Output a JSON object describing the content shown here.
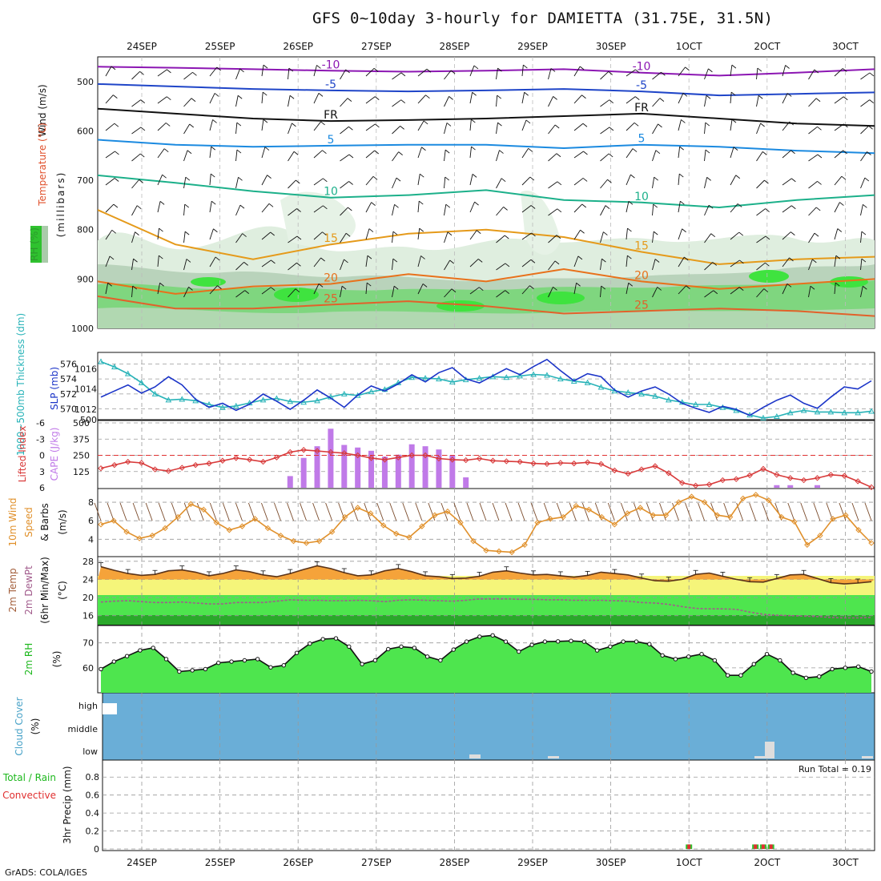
{
  "title": "GFS 0~10day 3-hourly for DAMIETTA (31.75E, 31.5N)",
  "credit": "GrADS: COLA/IGES",
  "chart_data": {
    "type": "meteogram",
    "dates": [
      "24SEP",
      "25SEP",
      "26SEP",
      "27SEP",
      "28SEP",
      "29SEP",
      "30SEP",
      "1OCT",
      "2OCT",
      "3OCT"
    ],
    "panels": {
      "upper": {
        "label_wind": "Wind (m/s)",
        "label_temp": "Temperature (°C)",
        "label_rh": "RH (%)",
        "label_units": "(millibars)",
        "pressure_levels": [
          500,
          600,
          700,
          800,
          900,
          1000
        ],
        "ylim": [
          450,
          1000
        ],
        "temperature_contours": [
          {
            "label": "-10",
            "color": "#8c17b3",
            "level_mb": [
              470,
              472,
              475,
              478,
              480,
              478,
              475,
              482,
              488,
              482,
              475
            ]
          },
          {
            "label": "-5",
            "color": "#1f45c8",
            "level_mb": [
              505,
              510,
              515,
              518,
              520,
              518,
              515,
              520,
              528,
              525,
              522
            ]
          },
          {
            "label": "FR",
            "color": "#111111",
            "level_mb": [
              555,
              565,
              575,
              580,
              578,
              575,
              570,
              565,
              575,
              585,
              590
            ]
          },
          {
            "label": "5",
            "color": "#1b8ae0",
            "level_mb": [
              618,
              628,
              632,
              630,
              628,
              628,
              635,
              628,
              632,
              640,
              645
            ]
          },
          {
            "label": "10",
            "color": "#1cb08a",
            "level_mb": [
              690,
              705,
              722,
              735,
              730,
              720,
              740,
              745,
              755,
              740,
              730
            ]
          },
          {
            "label": "15",
            "color": "#e59a1a",
            "level_mb": [
              760,
              830,
              860,
              830,
              808,
              800,
              815,
              845,
              870,
              860,
              855
            ]
          },
          {
            "label": "20",
            "color": "#e8711b",
            "level_mb": [
              905,
              930,
              915,
              910,
              890,
              905,
              880,
              905,
              920,
              910,
              900
            ]
          },
          {
            "label": "25",
            "color": "#e2612a",
            "level_mb": [
              935,
              960,
              960,
              952,
              945,
              955,
              970,
              965,
              960,
              965,
              975
            ]
          }
        ]
      },
      "thickness": {
        "label_thickness": "1000~500mb Thickness (dm)",
        "label_slp": "SLP (mb)",
        "thickness_ticks": [
          570,
          572,
          574,
          576
        ],
        "slp_ticks": [
          1012,
          1014,
          1016
        ],
        "slp_values": [
          1013.2,
          1013.8,
          1014.4,
          1013.6,
          1014.2,
          1015.2,
          1014.4,
          1013.0,
          1012.2,
          1012.6,
          1011.9,
          1012.5,
          1013.5,
          1012.8,
          1012.0,
          1012.9,
          1013.9,
          1013.1,
          1012.2,
          1013.4,
          1014.3,
          1013.8,
          1014.5,
          1015.4,
          1014.7,
          1015.6,
          1016.1,
          1015.0,
          1014.6,
          1015.3,
          1016.0,
          1015.4,
          1016.2,
          1016.9,
          1015.8,
          1014.8,
          1015.5,
          1015.2,
          1013.9,
          1013.2,
          1013.8,
          1014.2,
          1013.5,
          1012.6,
          1012.1,
          1011.7,
          1012.3,
          1012.0,
          1011.4,
          1012.2,
          1012.9,
          1013.4,
          1012.6,
          1012.1,
          1013.2,
          1014.2,
          1014.0,
          1014.8
        ],
        "thickness_values": [
          576.3,
          575.6,
          574.7,
          573.5,
          572.0,
          571.2,
          571.3,
          571.1,
          570.6,
          570.2,
          570.4,
          570.8,
          571.2,
          571.4,
          571.0,
          570.9,
          571.1,
          571.6,
          572.0,
          571.8,
          572.3,
          572.6,
          573.5,
          574.2,
          574.1,
          574.0,
          573.6,
          573.9,
          574.1,
          574.3,
          574.2,
          574.4,
          574.6,
          574.5,
          574.0,
          573.7,
          573.5,
          572.9,
          572.4,
          572.2,
          572.0,
          571.7,
          571.2,
          570.9,
          570.6,
          570.6,
          570.2,
          569.8,
          569.2,
          568.8,
          569.0,
          569.5,
          569.8,
          569.6,
          569.6,
          569.5,
          569.5,
          569.7
        ]
      },
      "cape": {
        "label_li": "Lifted Index",
        "label_cape": "CAPE (J/kg)",
        "li_ticks": [
          "-6",
          "-3",
          "0",
          "3",
          "6"
        ],
        "cape_ticks": [
          125,
          250,
          375,
          500
        ],
        "li_values": [
          2.4,
          1.8,
          1.2,
          1.4,
          2.6,
          2.9,
          2.3,
          1.8,
          1.5,
          1.0,
          0.5,
          0.8,
          1.2,
          0.4,
          -0.6,
          -1.0,
          -0.8,
          -0.6,
          -0.4,
          0.0,
          0.5,
          0.8,
          0.4,
          0.0,
          0.0,
          0.6,
          0.8,
          0.9,
          0.6,
          1.0,
          1.1,
          1.2,
          1.5,
          1.6,
          1.4,
          1.5,
          1.3,
          1.6,
          2.8,
          3.4,
          2.6,
          2.0,
          3.3,
          5.1,
          5.6,
          5.4,
          4.6,
          4.4,
          3.7,
          2.5,
          3.6,
          4.2,
          4.6,
          4.2,
          3.6,
          3.8,
          4.8,
          5.9
        ],
        "cape_values": [
          0,
          0,
          0,
          0,
          0,
          0,
          0,
          0,
          0,
          0,
          0,
          0,
          0,
          0,
          90,
          230,
          320,
          455,
          330,
          310,
          285,
          240,
          255,
          335,
          320,
          295,
          250,
          80,
          0,
          0,
          0,
          0,
          0,
          0,
          0,
          0,
          0,
          0,
          0,
          0,
          0,
          0,
          0,
          0,
          0,
          0,
          0,
          0,
          0,
          0,
          20,
          20,
          0,
          20,
          0,
          0,
          0,
          0
        ]
      },
      "wind10m": {
        "label_1": "10m Wind",
        "label_2": "Speed",
        "label_3": "& Barbs",
        "label_units": "(m/s)",
        "ticks": [
          4,
          6,
          8
        ],
        "values": [
          5.6,
          6.0,
          4.8,
          4.1,
          4.4,
          5.2,
          6.4,
          7.8,
          7.2,
          5.8,
          5.0,
          5.4,
          6.2,
          5.2,
          4.4,
          3.8,
          3.6,
          3.8,
          4.8,
          6.4,
          7.4,
          6.8,
          5.5,
          4.6,
          4.2,
          5.4,
          6.6,
          7.0,
          5.8,
          3.8,
          2.8,
          2.7,
          2.6,
          3.4,
          5.8,
          6.2,
          6.4,
          7.6,
          7.2,
          6.4,
          5.6,
          6.8,
          7.4,
          6.6,
          6.6,
          8.0,
          8.6,
          8.0,
          6.6,
          6.4,
          8.4,
          8.8,
          8.2,
          6.4,
          5.9,
          3.4,
          4.4,
          6.2,
          6.6,
          5.0,
          3.6
        ]
      },
      "temp2m": {
        "label_1": "2m Temp",
        "label_2": "2m DewPt",
        "label_3": "(6hr Min/Max)",
        "label_units": "(°C)",
        "ticks": [
          16,
          20,
          24,
          28
        ],
        "temp_values": [
          26.8,
          26.0,
          25.3,
          24.9,
          25.1,
          25.9,
          26.1,
          25.6,
          24.8,
          25.3,
          26.1,
          25.7,
          25.0,
          24.6,
          25.3,
          26.2,
          27.0,
          26.4,
          25.5,
          24.8,
          25.0,
          25.9,
          26.4,
          25.7,
          24.8,
          24.6,
          24.2,
          24.3,
          24.7,
          25.6,
          25.9,
          25.4,
          25.0,
          25.1,
          24.8,
          24.5,
          24.9,
          25.6,
          25.3,
          25.0,
          24.3,
          23.7,
          23.6,
          24.0,
          25.1,
          25.4,
          24.7,
          24.0,
          23.5,
          23.4,
          24.2,
          25.0,
          25.1,
          24.2,
          23.3,
          23.0,
          23.2,
          23.5
        ],
        "dew_values": [
          19.0,
          19.2,
          19.3,
          19.1,
          18.9,
          18.9,
          19.0,
          18.8,
          18.6,
          18.6,
          18.9,
          18.9,
          18.9,
          19.2,
          19.5,
          19.4,
          19.4,
          19.3,
          19.3,
          19.4,
          19.3,
          19.1,
          19.4,
          19.5,
          19.4,
          19.3,
          19.2,
          19.4,
          19.7,
          19.7,
          19.7,
          19.6,
          19.6,
          19.5,
          19.5,
          19.4,
          19.4,
          19.4,
          19.3,
          19.2,
          18.9,
          18.8,
          18.5,
          18.0,
          17.6,
          17.5,
          17.5,
          17.4,
          16.8,
          16.3,
          16.1,
          16.0,
          15.9,
          15.8,
          15.6,
          15.5,
          15.5,
          15.6
        ]
      },
      "rh2m": {
        "label": "2m RH",
        "label_units": "(%)",
        "ticks": [
          60,
          70
        ],
        "values": [
          59.5,
          62.5,
          64.7,
          67.0,
          68.0,
          63.5,
          58.5,
          59.0,
          59.5,
          62.0,
          62.5,
          63.0,
          63.5,
          60.2,
          61.0,
          66.0,
          69.7,
          71.5,
          71.8,
          68.5,
          61.5,
          63.0,
          67.5,
          68.5,
          68.0,
          64.5,
          63.0,
          67.3,
          70.5,
          72.5,
          73.0,
          70.5,
          66.5,
          69.2,
          70.5,
          70.6,
          70.8,
          70.5,
          67.0,
          68.5,
          70.5,
          70.5,
          69.5,
          65.0,
          63.5,
          64.5,
          65.5,
          63.0,
          57.0,
          57.0,
          61.5,
          65.5,
          63.0,
          58.0,
          56.0,
          56.5,
          59.5,
          60.0,
          60.5,
          58.5
        ]
      },
      "cloud": {
        "label_1": "Cloud Cover",
        "label_units": "(%)",
        "levels": [
          "high",
          "middle",
          "low"
        ]
      },
      "precip": {
        "label_1": "Total / Rain",
        "label_2": "Convective",
        "label_axis": "3hr Precip (mm)",
        "run_total_label": "Run Total = 0.19",
        "ticks": [
          "0",
          "0.2",
          "0.4",
          "0.6",
          "0.8"
        ],
        "bars": [
          {
            "date_index": 7.0,
            "value": 0.05
          },
          {
            "date_index": 7.85,
            "value": 0.05
          },
          {
            "date_index": 7.95,
            "value": 0.05
          },
          {
            "date_index": 8.05,
            "value": 0.05
          }
        ]
      }
    },
    "colors": {
      "temp_line": "#5a3319",
      "temp_fill": "#f5a33a",
      "dew_line": "#a25c8c",
      "rh_fill": "#4ee54e",
      "rh_fill_dark": "#2fc22f",
      "cloud_fill": "#6aaed7",
      "cape_bar": "#c07ae8",
      "li_line": "#d83a3a",
      "slp_line": "#1b34c8",
      "thickness_line": "#28b3b8",
      "wind_line": "#e0902b"
    }
  }
}
